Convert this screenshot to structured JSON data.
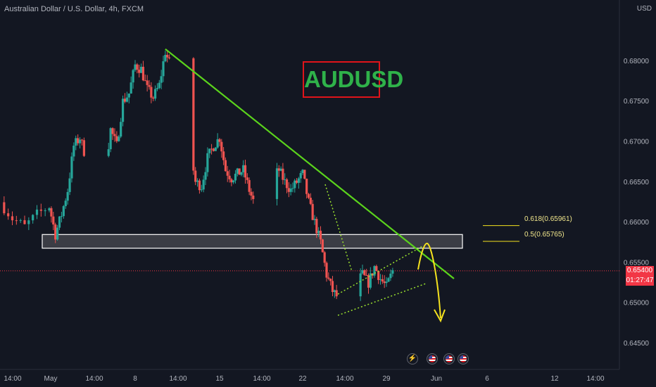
{
  "header": {
    "symbol_title": "Australian Dollar / U.S. Dollar, 4h, FXCM",
    "currency": "USD"
  },
  "annotations": {
    "ticker_label": "AUDUSD",
    "fib_0618": "0.618(0.65961)",
    "fib_05": "0.5(0.65765)"
  },
  "price_scale": {
    "last_price": "0.65400",
    "countdown": "01:27:47"
  },
  "events": [
    {
      "icon": "lightning-icon"
    },
    {
      "icon": "us-flag-icon"
    },
    {
      "icon": "us-flag-icon"
    },
    {
      "icon": "us-flag-icon"
    }
  ],
  "colors": {
    "background": "#131722",
    "bull": "#26a69a",
    "bear": "#ef5350",
    "trendline": "#5bd41c",
    "channel": "#9be22e",
    "projection": "#f5e21e",
    "ticker_border": "#e0141a",
    "ticker_text": "#2fb24a",
    "price_tag": "#f23645"
  },
  "chart_data": {
    "type": "candlestick",
    "title": "Australian Dollar / U.S. Dollar, 4h, FXCM",
    "y_tick_labels": [
      "0.64500",
      "0.65000",
      "0.65500",
      "0.66000",
      "0.66500",
      "0.67000",
      "0.67500",
      "0.68000"
    ],
    "x_tick_labels": [
      "14:00",
      "May",
      "14:00",
      "8",
      "14:00",
      "15",
      "14:00",
      "22",
      "14:00",
      "29",
      "Jun",
      "6",
      "12",
      "14:00"
    ],
    "ylim": [
      0.642,
      0.685
    ],
    "close_path": [
      [
        "Apr 29 00:00",
        0.6625
      ],
      [
        "Apr 29 12:00",
        0.6605
      ],
      [
        "Apr 30 00:00",
        0.6595
      ],
      [
        "Apr 30 12:00",
        0.661
      ],
      [
        "May 1 00:00",
        0.662
      ],
      [
        "May 1 12:00",
        0.6585
      ],
      [
        "May 2 00:00",
        0.661
      ],
      [
        "May 2 12:00",
        0.664
      ],
      [
        "May 3 00:00",
        0.6695
      ],
      [
        "May 3 12:00",
        0.6705
      ],
      [
        "May 4 00:00",
        0.668
      ],
      [
        "May 4 12:00",
        0.667
      ],
      [
        "May 5 00:00",
        0.67
      ],
      [
        "May 5 12:00",
        0.666
      ],
      [
        "May 6 00:00",
        0.6715
      ],
      [
        "May 6 12:00",
        0.6695
      ],
      [
        "May 7 00:00",
        0.675
      ],
      [
        "May 7 12:00",
        0.676
      ],
      [
        "May 8 00:00",
        0.6795
      ],
      [
        "May 8 12:00",
        0.679
      ],
      [
        "May 9 00:00",
        0.6765
      ],
      [
        "May 9 12:00",
        0.6755
      ],
      [
        "May 10 00:00",
        0.677
      ],
      [
        "May 10 12:00",
        0.6812
      ],
      [
        "May 11 00:00",
        0.679
      ],
      [
        "May 11 12:00",
        0.6735
      ],
      [
        "May 12 00:00",
        0.67
      ],
      [
        "May 12 12:00",
        0.6695
      ],
      [
        "May 13 00:00",
        0.665
      ],
      [
        "May 13 12:00",
        0.6645
      ],
      [
        "May 14 00:00",
        0.668
      ],
      [
        "May 14 12:00",
        0.6695
      ],
      [
        "May 15 00:00",
        0.6705
      ],
      [
        "May 15 12:00",
        0.6665
      ],
      [
        "May 16 00:00",
        0.6655
      ],
      [
        "May 16 12:00",
        0.666
      ],
      [
        "May 17 00:00",
        0.6665
      ],
      [
        "May 17 12:00",
        0.664
      ],
      [
        "May 18 00:00",
        0.662
      ],
      [
        "May 18 12:00",
        0.663
      ],
      [
        "May 19 00:00",
        0.665
      ],
      [
        "May 19 12:00",
        0.6655
      ],
      [
        "May 20 00:00",
        0.6665
      ],
      [
        "May 20 12:00",
        0.665
      ],
      [
        "May 21 00:00",
        0.664
      ],
      [
        "May 21 12:00",
        0.665
      ],
      [
        "May 22 00:00",
        0.666
      ],
      [
        "May 22 12:00",
        0.6625
      ],
      [
        "May 23 00:00",
        0.66
      ],
      [
        "May 23 12:00",
        0.6575
      ],
      [
        "May 24 00:00",
        0.6535
      ],
      [
        "May 24 12:00",
        0.6515
      ],
      [
        "May 25 00:00",
        0.6505
      ],
      [
        "May 25 12:00",
        0.6495
      ],
      [
        "May 26 00:00",
        0.651
      ],
      [
        "May 26 12:00",
        0.6525
      ],
      [
        "May 27 00:00",
        0.6535
      ],
      [
        "May 27 12:00",
        0.6525
      ],
      [
        "May 28 00:00",
        0.6545
      ],
      [
        "May 28 12:00",
        0.653
      ],
      [
        "May 29 00:00",
        0.652
      ],
      [
        "May 29 12:00",
        0.654
      ]
    ],
    "support_zone": [
      0.6568,
      0.6585
    ],
    "fib_levels": [
      {
        "label": "0.618",
        "value": 0.65961
      },
      {
        "label": "0.5",
        "value": 0.65765
      }
    ],
    "trendline": {
      "from": [
        "May 10 12:00",
        0.6815
      ],
      "to": [
        "Jun 2 00:00",
        0.6527
      ]
    },
    "channel": {
      "upper": [
        [
          "May 26 00:00",
          0.6518
        ],
        [
          "May 30 00:00",
          0.6568
        ]
      ],
      "lower": [
        [
          "May 26 00:00",
          0.649
        ],
        [
          "May 30 00:00",
          0.651
        ]
      ]
    },
    "last_price": 0.654,
    "grid": false
  }
}
